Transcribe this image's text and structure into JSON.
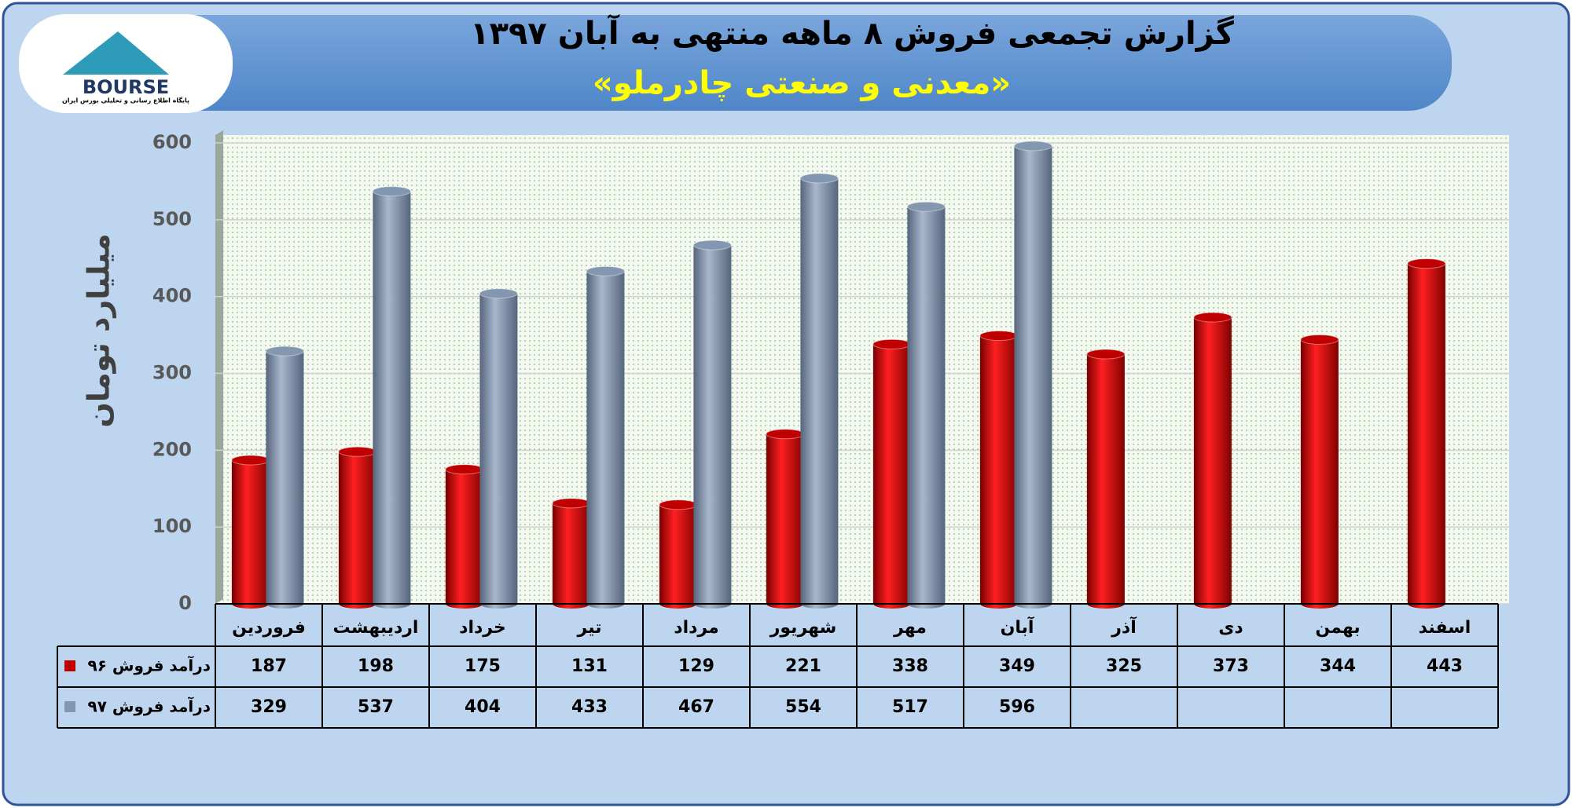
{
  "logo": {
    "name": "BOURSE",
    "tagline": "پایگاه اطلاع رسانی و تحلیلی بورس ایران"
  },
  "chart_data": {
    "type": "bar",
    "title": "گزارش تجمعی فروش ۸ ماهه منتهی به آبان ۱۳۹۷",
    "subtitle": "«معدنی و صنعتی چادرملو»",
    "y_label": "میلیارد تومان",
    "categories": [
      "فروردین",
      "اردیبهشت",
      "خرداد",
      "تیر",
      "مرداد",
      "شهریور",
      "مهر",
      "آبان",
      "آذر",
      "دی",
      "بهمن",
      "اسفند"
    ],
    "series": [
      {
        "name": "درآمد فروش ۹۶",
        "color": "#c00000",
        "values": [
          187,
          198,
          175,
          131,
          129,
          221,
          338,
          349,
          325,
          373,
          344,
          443
        ]
      },
      {
        "name": "درآمد فروش ۹۷",
        "color": "#8497b0",
        "values": [
          329,
          537,
          404,
          433,
          467,
          554,
          517,
          596,
          null,
          null,
          null,
          null
        ]
      }
    ],
    "ylim": [
      0,
      600
    ],
    "yticks": [
      0,
      100,
      200,
      300,
      400,
      500,
      600
    ],
    "grid": true
  }
}
